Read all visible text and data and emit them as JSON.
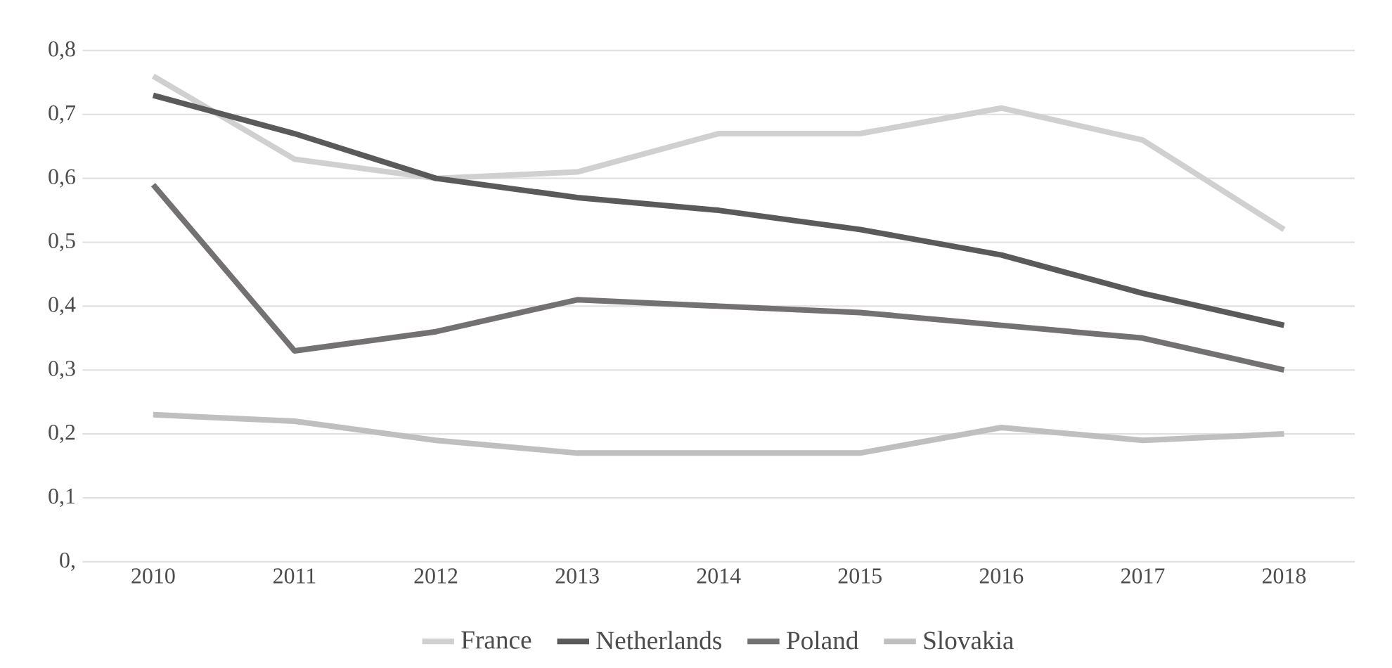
{
  "chart_data": {
    "type": "line",
    "categories": [
      "2010",
      "2011",
      "2012",
      "2013",
      "2014",
      "2015",
      "2016",
      "2017",
      "2018"
    ],
    "series": [
      {
        "name": "France",
        "color": "#d0d0d0",
        "values": [
          0.76,
          0.63,
          0.6,
          0.61,
          0.67,
          0.67,
          0.71,
          0.66,
          0.52
        ]
      },
      {
        "name": "Netherlands",
        "color": "#5a5a5a",
        "values": [
          0.73,
          0.67,
          0.6,
          0.57,
          0.55,
          0.52,
          0.48,
          0.42,
          0.37
        ]
      },
      {
        "name": "Poland",
        "color": "#737171",
        "values": [
          0.59,
          0.33,
          0.36,
          0.41,
          0.4,
          0.39,
          0.37,
          0.35,
          0.3
        ]
      },
      {
        "name": "Slovakia",
        "color": "#bfbfbf",
        "values": [
          0.23,
          0.22,
          0.19,
          0.17,
          0.17,
          0.17,
          0.21,
          0.19,
          0.2
        ]
      }
    ],
    "ylim": [
      0,
      0.8
    ],
    "yticks": [
      {
        "value": 0,
        "label": "0,"
      },
      {
        "value": 0.1,
        "label": "0,1"
      },
      {
        "value": 0.2,
        "label": "0,2"
      },
      {
        "value": 0.3,
        "label": "0,3"
      },
      {
        "value": 0.4,
        "label": "0,4"
      },
      {
        "value": 0.5,
        "label": "0,5"
      },
      {
        "value": 0.6,
        "label": "0,6"
      },
      {
        "value": 0.7,
        "label": "0,7"
      },
      {
        "value": 0.8,
        "label": "0,8"
      }
    ],
    "grid": "y",
    "legend": "bottom",
    "marker": "none",
    "line_style": "solid"
  }
}
